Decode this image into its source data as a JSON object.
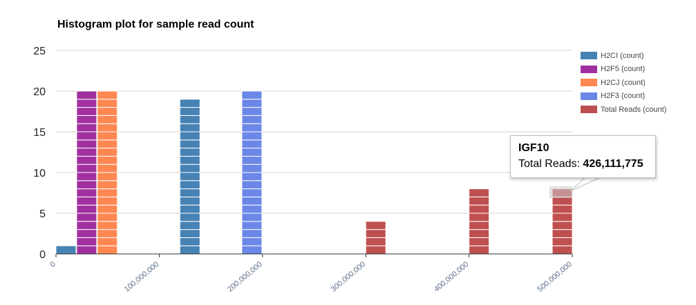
{
  "chart_data": {
    "type": "bar",
    "title": "Histogram plot for sample read count",
    "xlabel": "",
    "ylabel": "",
    "ylim": [
      0,
      25
    ],
    "yticks": [
      0,
      5,
      10,
      15,
      20,
      25
    ],
    "xlim": [
      0,
      500000000
    ],
    "xticks": [
      "0",
      "100,000,000",
      "200,000,000",
      "300,000,000",
      "400,000,000",
      "500,000,000"
    ],
    "grid": true,
    "legend_position": "right",
    "series": [
      {
        "name": "H2CI (count)",
        "color": "#4682b4",
        "points": [
          {
            "x": 0,
            "y": 1
          },
          {
            "x": 120000000,
            "y": 19
          }
        ]
      },
      {
        "name": "H2F5 (count)",
        "color": "#a030a0",
        "points": [
          {
            "x": 20000000,
            "y": 20
          }
        ]
      },
      {
        "name": "H2CJ (count)",
        "color": "#ff8750",
        "points": [
          {
            "x": 40000000,
            "y": 20
          }
        ]
      },
      {
        "name": "H2F3 (count)",
        "color": "#6b87e8",
        "points": [
          {
            "x": 180000000,
            "y": 20
          }
        ]
      },
      {
        "name": "Total Reads (count)",
        "color": "#c05050",
        "points": [
          {
            "x": 300000000,
            "y": 4
          },
          {
            "x": 400000000,
            "y": 8
          },
          {
            "x": 500000000,
            "y": 8
          }
        ]
      }
    ]
  },
  "tooltip": {
    "title": "IGF10",
    "label": "Total Reads: ",
    "value": "426,111,775"
  }
}
